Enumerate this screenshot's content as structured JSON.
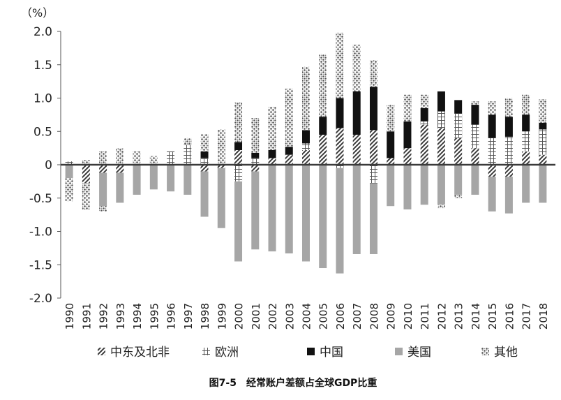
{
  "chart_data": {
    "type": "bar",
    "stacked": true,
    "unit_label": "（%）",
    "caption": "图7-5　经常账户差额占全球GDP比重",
    "ylim": [
      -2.0,
      2.0
    ],
    "yticks": [
      "2.0",
      "1.5",
      "1.0",
      "0.5",
      "0",
      "-0.5",
      "-1.0",
      "-1.5",
      "-2.0"
    ],
    "ytick_values": [
      2.0,
      1.5,
      1.0,
      0.5,
      0,
      -0.5,
      -1.0,
      -1.5,
      -2.0
    ],
    "categories": [
      "1990",
      "1991",
      "1992",
      "1993",
      "1994",
      "1995",
      "1996",
      "1997",
      "1998",
      "1999",
      "2000",
      "2001",
      "2002",
      "2003",
      "2004",
      "2005",
      "2006",
      "2007",
      "2008",
      "2009",
      "2010",
      "2011",
      "2012",
      "2013",
      "2014",
      "2015",
      "2016",
      "2017",
      "2018"
    ],
    "grid": false,
    "legend_position": "bottom",
    "series": [
      {
        "name": "中东及北非",
        "pattern": "diag-hatch",
        "values": [
          0.0,
          -0.28,
          -0.12,
          -0.12,
          0.0,
          0.0,
          0.0,
          0.0,
          -0.1,
          -0.05,
          0.22,
          -0.1,
          0.1,
          0.15,
          0.22,
          0.45,
          0.55,
          0.45,
          0.52,
          0.1,
          0.25,
          0.6,
          0.55,
          0.4,
          0.25,
          -0.18,
          -0.18,
          0.2,
          0.15
        ]
      },
      {
        "name": "欧洲",
        "pattern": "cross-grid",
        "values": [
          0.05,
          0.0,
          0.0,
          0.0,
          0.0,
          0.0,
          0.2,
          0.3,
          0.1,
          0.0,
          -0.25,
          0.1,
          0.0,
          0.0,
          0.1,
          0.0,
          -0.05,
          0.0,
          -0.28,
          0.0,
          0.0,
          0.05,
          0.25,
          0.37,
          0.35,
          0.4,
          0.42,
          0.3,
          0.38
        ]
      },
      {
        "name": "中国",
        "pattern": "solid-black",
        "values": [
          0.0,
          0.0,
          0.0,
          0.0,
          0.0,
          0.0,
          0.0,
          0.0,
          0.1,
          0.0,
          0.12,
          0.08,
          0.12,
          0.12,
          0.2,
          0.27,
          0.45,
          0.65,
          0.65,
          0.4,
          0.4,
          0.2,
          0.3,
          0.2,
          0.3,
          0.35,
          0.3,
          0.25,
          0.1
        ]
      },
      {
        "name": "美国",
        "pattern": "solid-gray",
        "values": [
          -0.2,
          0.0,
          -0.5,
          -0.45,
          -0.45,
          -0.37,
          -0.4,
          -0.45,
          -0.68,
          -0.9,
          -1.2,
          -1.17,
          -1.3,
          -1.33,
          -1.45,
          -1.55,
          -1.58,
          -1.34,
          -1.06,
          -0.62,
          -0.67,
          -0.6,
          -0.6,
          -0.45,
          -0.45,
          -0.52,
          -0.55,
          -0.57,
          -0.57
        ]
      },
      {
        "name": "其他",
        "pattern": "dot-pattern",
        "values": [
          0.0,
          0.07,
          0.2,
          0.25,
          0.2,
          0.13,
          0.0,
          0.1,
          0.26,
          0.53,
          0.6,
          0.52,
          0.65,
          0.87,
          0.95,
          0.94,
          0.98,
          0.7,
          0.4,
          0.4,
          0.4,
          0.2,
          0.0,
          0.0,
          0.05,
          0.2,
          0.28,
          0.3,
          0.35
        ]
      },
      {
        "name": "",
        "pattern": "neg-other-dots",
        "values": [
          -0.35,
          -0.4,
          -0.08,
          0.0,
          0.0,
          0.0,
          0.0,
          0.0,
          0.0,
          0.0,
          0.0,
          0.0,
          0.0,
          0.0,
          0.0,
          0.0,
          0.0,
          0.0,
          0.0,
          0.0,
          0.0,
          0.0,
          -0.05,
          -0.05,
          0.0,
          0.0,
          0.0,
          0.0,
          0.0
        ]
      }
    ],
    "colors": {
      "hatch": "#444444",
      "china": "#111111",
      "usa": "#a6a6a6",
      "axis": "#555555",
      "zero_line": "#3a3a3a"
    }
  },
  "legend": {
    "items": [
      {
        "label": "中东及北非",
        "pattern": "diag-hatch"
      },
      {
        "label": "欧洲",
        "pattern": "cross-grid"
      },
      {
        "label": "中国",
        "pattern": "solid-black"
      },
      {
        "label": "美国",
        "pattern": "solid-gray"
      },
      {
        "label": "其他",
        "pattern": "dot-pattern"
      }
    ]
  }
}
